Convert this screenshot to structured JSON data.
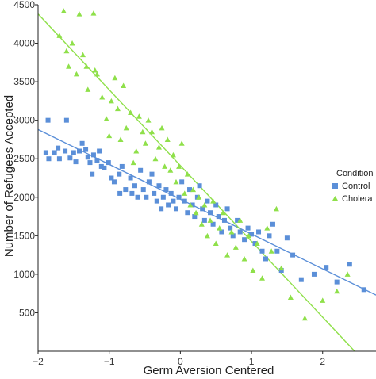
{
  "chart_data": {
    "type": "scatter",
    "title": "",
    "xlabel": "Germ Aversion Centered",
    "ylabel": "Number of Refugees Accepted",
    "xlim": [
      -2,
      2.75
    ],
    "ylim": [
      0,
      4500
    ],
    "x_ticks": [
      -2,
      -1,
      0,
      1,
      2
    ],
    "x_tick_labels": [
      "−2",
      "−1",
      "0",
      "1",
      "2"
    ],
    "y_ticks": [
      500,
      1000,
      1500,
      2000,
      2500,
      3000,
      3500,
      4000,
      4500
    ],
    "y_tick_labels": [
      "500",
      "1000",
      "1500",
      "2000",
      "2500",
      "3000",
      "3500",
      "4000",
      "4500"
    ],
    "grid": false,
    "legend": {
      "title": "Condition",
      "position": "right"
    },
    "series": [
      {
        "name": "Control",
        "marker": "square",
        "color": "#5b8fd8",
        "fit_line": {
          "x": [
            -2,
            2.75
          ],
          "y": [
            2880,
            730
          ]
        },
        "points": [
          [
            -1.86,
            3000
          ],
          [
            -1.89,
            2580
          ],
          [
            -1.85,
            2500
          ],
          [
            -1.77,
            2580
          ],
          [
            -1.72,
            2640
          ],
          [
            -1.7,
            2500
          ],
          [
            -1.62,
            2600
          ],
          [
            -1.6,
            3000
          ],
          [
            -1.55,
            2510
          ],
          [
            -1.5,
            2580
          ],
          [
            -1.47,
            2460
          ],
          [
            -1.42,
            2600
          ],
          [
            -1.38,
            2700
          ],
          [
            -1.33,
            2620
          ],
          [
            -1.3,
            2520
          ],
          [
            -1.27,
            2450
          ],
          [
            -1.24,
            2300
          ],
          [
            -1.22,
            2550
          ],
          [
            -1.17,
            2480
          ],
          [
            -1.14,
            2600
          ],
          [
            -1.11,
            2400
          ],
          [
            -1.07,
            2380
          ],
          [
            -1.01,
            2450
          ],
          [
            -0.97,
            2250
          ],
          [
            -0.93,
            2200
          ],
          [
            -0.86,
            2300
          ],
          [
            -0.85,
            2050
          ],
          [
            -0.82,
            2400
          ],
          [
            -0.77,
            2100
          ],
          [
            -0.7,
            2250
          ],
          [
            -0.68,
            2050
          ],
          [
            -0.64,
            2150
          ],
          [
            -0.6,
            2000
          ],
          [
            -0.56,
            2350
          ],
          [
            -0.52,
            2100
          ],
          [
            -0.48,
            2000
          ],
          [
            -0.44,
            2200
          ],
          [
            -0.4,
            2300
          ],
          [
            -0.37,
            2050
          ],
          [
            -0.33,
            1950
          ],
          [
            -0.3,
            2150
          ],
          [
            -0.27,
            1850
          ],
          [
            -0.24,
            2000
          ],
          [
            -0.2,
            2100
          ],
          [
            -0.17,
            1900
          ],
          [
            -0.13,
            2050
          ],
          [
            -0.1,
            1950
          ],
          [
            -0.06,
            1850
          ],
          [
            -0.02,
            2000
          ],
          [
            0.02,
            2200
          ],
          [
            0.06,
            1950
          ],
          [
            0.1,
            1800
          ],
          [
            0.13,
            2100
          ],
          [
            0.17,
            1900
          ],
          [
            0.2,
            1750
          ],
          [
            0.24,
            2000
          ],
          [
            0.27,
            2150
          ],
          [
            0.31,
            1850
          ],
          [
            0.34,
            1700
          ],
          [
            0.38,
            1950
          ],
          [
            0.42,
            1800
          ],
          [
            0.46,
            1650
          ],
          [
            0.5,
            1900
          ],
          [
            0.54,
            1750
          ],
          [
            0.58,
            1550
          ],
          [
            0.62,
            1700
          ],
          [
            0.66,
            1850
          ],
          [
            0.7,
            1600
          ],
          [
            0.74,
            1500
          ],
          [
            0.8,
            1700
          ],
          [
            0.84,
            1550
          ],
          [
            0.9,
            1450
          ],
          [
            0.95,
            1600
          ],
          [
            1.0,
            1520
          ],
          [
            1.05,
            1400
          ],
          [
            1.1,
            1550
          ],
          [
            1.15,
            1300
          ],
          [
            1.2,
            1200
          ],
          [
            1.25,
            1500
          ],
          [
            1.3,
            1650
          ],
          [
            1.36,
            1300
          ],
          [
            1.42,
            1050
          ],
          [
            1.5,
            1470
          ],
          [
            1.58,
            1250
          ],
          [
            1.7,
            930
          ],
          [
            1.88,
            1000
          ],
          [
            2.05,
            1090
          ],
          [
            2.2,
            900
          ],
          [
            2.38,
            1130
          ],
          [
            2.58,
            800
          ]
        ]
      },
      {
        "name": "Cholera",
        "marker": "triangle",
        "color": "#8fe04a",
        "fit_line": {
          "x": [
            -2,
            2.45
          ],
          "y": [
            4380,
            0
          ]
        },
        "points": [
          [
            -1.7,
            4100
          ],
          [
            -1.64,
            4420
          ],
          [
            -1.6,
            3900
          ],
          [
            -1.57,
            3700
          ],
          [
            -1.52,
            4000
          ],
          [
            -1.46,
            3600
          ],
          [
            -1.42,
            4380
          ],
          [
            -1.37,
            3850
          ],
          [
            -1.32,
            3700
          ],
          [
            -1.3,
            3400
          ],
          [
            -1.22,
            4390
          ],
          [
            -1.2,
            3650
          ],
          [
            -1.17,
            3600
          ],
          [
            -1.1,
            3300
          ],
          [
            -1.04,
            3020
          ],
          [
            -1.0,
            2800
          ],
          [
            -0.97,
            3250
          ],
          [
            -0.92,
            3550
          ],
          [
            -0.88,
            3150
          ],
          [
            -0.84,
            2750
          ],
          [
            -0.8,
            3450
          ],
          [
            -0.76,
            2900
          ],
          [
            -0.7,
            3100
          ],
          [
            -0.66,
            2450
          ],
          [
            -0.62,
            2600
          ],
          [
            -0.58,
            3050
          ],
          [
            -0.53,
            2850
          ],
          [
            -0.49,
            2700
          ],
          [
            -0.45,
            3000
          ],
          [
            -0.4,
            2850
          ],
          [
            -0.35,
            2500
          ],
          [
            -0.3,
            2650
          ],
          [
            -0.26,
            2900
          ],
          [
            -0.22,
            2400
          ],
          [
            -0.18,
            2750
          ],
          [
            -0.14,
            2350
          ],
          [
            -0.1,
            2550
          ],
          [
            -0.06,
            2200
          ],
          [
            -0.02,
            2400
          ],
          [
            0.02,
            2700
          ],
          [
            0.06,
            2050
          ],
          [
            0.1,
            2300
          ],
          [
            0.14,
            1900
          ],
          [
            0.18,
            2100
          ],
          [
            0.22,
            1800
          ],
          [
            0.26,
            2000
          ],
          [
            0.3,
            1650
          ],
          [
            0.34,
            1900
          ],
          [
            0.38,
            1500
          ],
          [
            0.42,
            1700
          ],
          [
            0.46,
            1950
          ],
          [
            0.5,
            1400
          ],
          [
            0.55,
            1600
          ],
          [
            0.6,
            1800
          ],
          [
            0.66,
            1250
          ],
          [
            0.72,
            1550
          ],
          [
            0.78,
            1350
          ],
          [
            0.84,
            1700
          ],
          [
            0.9,
            1200
          ],
          [
            0.96,
            1500
          ],
          [
            1.02,
            1050
          ],
          [
            1.08,
            1400
          ],
          [
            1.15,
            950
          ],
          [
            1.22,
            1600
          ],
          [
            1.28,
            1300
          ],
          [
            1.35,
            1850
          ],
          [
            1.42,
            1080
          ],
          [
            1.55,
            700
          ],
          [
            1.75,
            430
          ],
          [
            2.0,
            660
          ],
          [
            2.2,
            780
          ],
          [
            2.35,
            1000
          ]
        ]
      }
    ]
  }
}
